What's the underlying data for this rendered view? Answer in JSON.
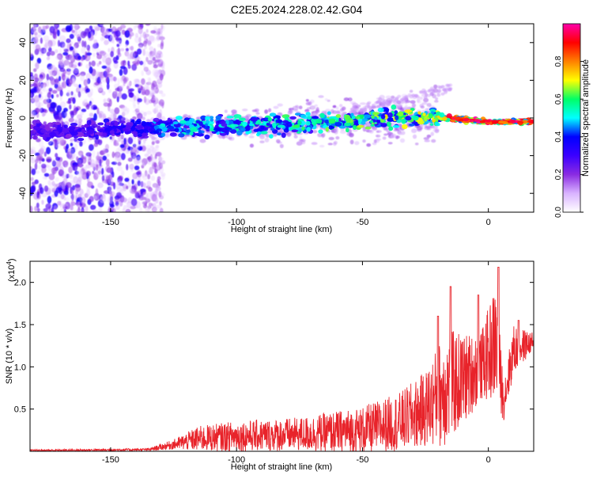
{
  "title": "C2E5.2024.228.02.42.G04",
  "colorbar": {
    "label": "Normalized spectral amplitude",
    "ticks": [
      "0.0",
      "0.2",
      "0.4",
      "0.6",
      "0.8"
    ],
    "tick_values": [
      0.0,
      0.2,
      0.4,
      0.6,
      0.8
    ],
    "range": [
      0,
      1
    ],
    "colormap": [
      "#ffffff",
      "#d9b3ff",
      "#8a2be2",
      "#3b00ff",
      "#0000ff",
      "#00ffff",
      "#00ff66",
      "#ffff00",
      "#ff8000",
      "#ff0000",
      "#ff00aa"
    ]
  },
  "chart_data": [
    {
      "type": "heatmap",
      "xlabel": "Height of straight line (km)",
      "ylabel": "Frequency (Hz)",
      "xlim": [
        -182,
        18
      ],
      "ylim": [
        -50,
        50
      ],
      "xticks": [
        -150,
        -100,
        -50,
        0
      ],
      "yticks": [
        -40,
        -20,
        0,
        20,
        40
      ],
      "xtick_labels": [
        "-150",
        "-100",
        "-50",
        "0"
      ],
      "ytick_labels": [
        "-40",
        "-20",
        "0",
        "20",
        "40"
      ],
      "ridge": {
        "description_values": [
          {
            "x": -170,
            "freq": -7,
            "amp": 0.2
          },
          {
            "x": -130,
            "freq": -5,
            "amp": 0.35
          },
          {
            "x": -100,
            "freq": -4,
            "amp": 0.4
          },
          {
            "x": -75,
            "freq": -3,
            "amp": 0.45
          },
          {
            "x": -50,
            "freq": -1,
            "amp": 0.5
          },
          {
            "x": -25,
            "freq": 1,
            "amp": 0.55
          },
          {
            "x": -15,
            "freq": 0,
            "amp": 0.75
          },
          {
            "x": 0,
            "freq": -2,
            "amp": 0.9
          },
          {
            "x": 15,
            "freq": -2,
            "amp": 0.85
          }
        ],
        "noise_region_x": [
          -182,
          -133
        ],
        "noise_freq_range": [
          -50,
          50
        ]
      },
      "grid": false
    },
    {
      "type": "line",
      "xlabel": "Height of straight line (km)",
      "ylabel": "SNR (10 * v/v)",
      "yscale_label": "(x10",
      "yscale_exp": "4",
      "xlim": [
        -182,
        18
      ],
      "ylim": [
        0,
        2.25
      ],
      "xticks": [
        -150,
        -100,
        -50,
        0
      ],
      "xtick_labels": [
        "-150",
        "-100",
        "-50",
        "0"
      ],
      "yticks": [
        0.5,
        1.0,
        1.5,
        2.0
      ],
      "ytick_labels": [
        "0.5",
        "1.0",
        "1.5",
        "2.0"
      ],
      "series": [
        {
          "color": "#e8232a",
          "envelope_points": [
            {
              "x": -182,
              "mean": 0.01,
              "amp": 0.01
            },
            {
              "x": -135,
              "mean": 0.02,
              "amp": 0.015
            },
            {
              "x": -125,
              "mean": 0.08,
              "amp": 0.06
            },
            {
              "x": -115,
              "mean": 0.15,
              "amp": 0.15
            },
            {
              "x": -100,
              "mean": 0.18,
              "amp": 0.18
            },
            {
              "x": -75,
              "mean": 0.2,
              "amp": 0.2
            },
            {
              "x": -50,
              "mean": 0.25,
              "amp": 0.28
            },
            {
              "x": -35,
              "mean": 0.35,
              "amp": 0.35
            },
            {
              "x": -25,
              "mean": 0.5,
              "amp": 0.45
            },
            {
              "x": -17,
              "mean": 0.75,
              "amp": 0.7
            },
            {
              "x": -10,
              "mean": 0.85,
              "amp": 0.55
            },
            {
              "x": -3,
              "mean": 1.0,
              "amp": 0.4
            },
            {
              "x": 3,
              "mean": 1.3,
              "amp": 0.7
            },
            {
              "x": 6,
              "mean": 0.6,
              "amp": 0.25
            },
            {
              "x": 10,
              "mean": 1.2,
              "amp": 0.3
            },
            {
              "x": 18,
              "mean": 1.3,
              "amp": 0.1
            }
          ],
          "peaks": [
            {
              "x": 4,
              "y": 2.18
            },
            {
              "x": -15,
              "y": 1.95
            },
            {
              "x": -4,
              "y": 1.85
            },
            {
              "x": -20,
              "y": 1.6
            },
            {
              "x": 12,
              "y": 1.55
            }
          ]
        }
      ],
      "grid": false
    }
  ]
}
